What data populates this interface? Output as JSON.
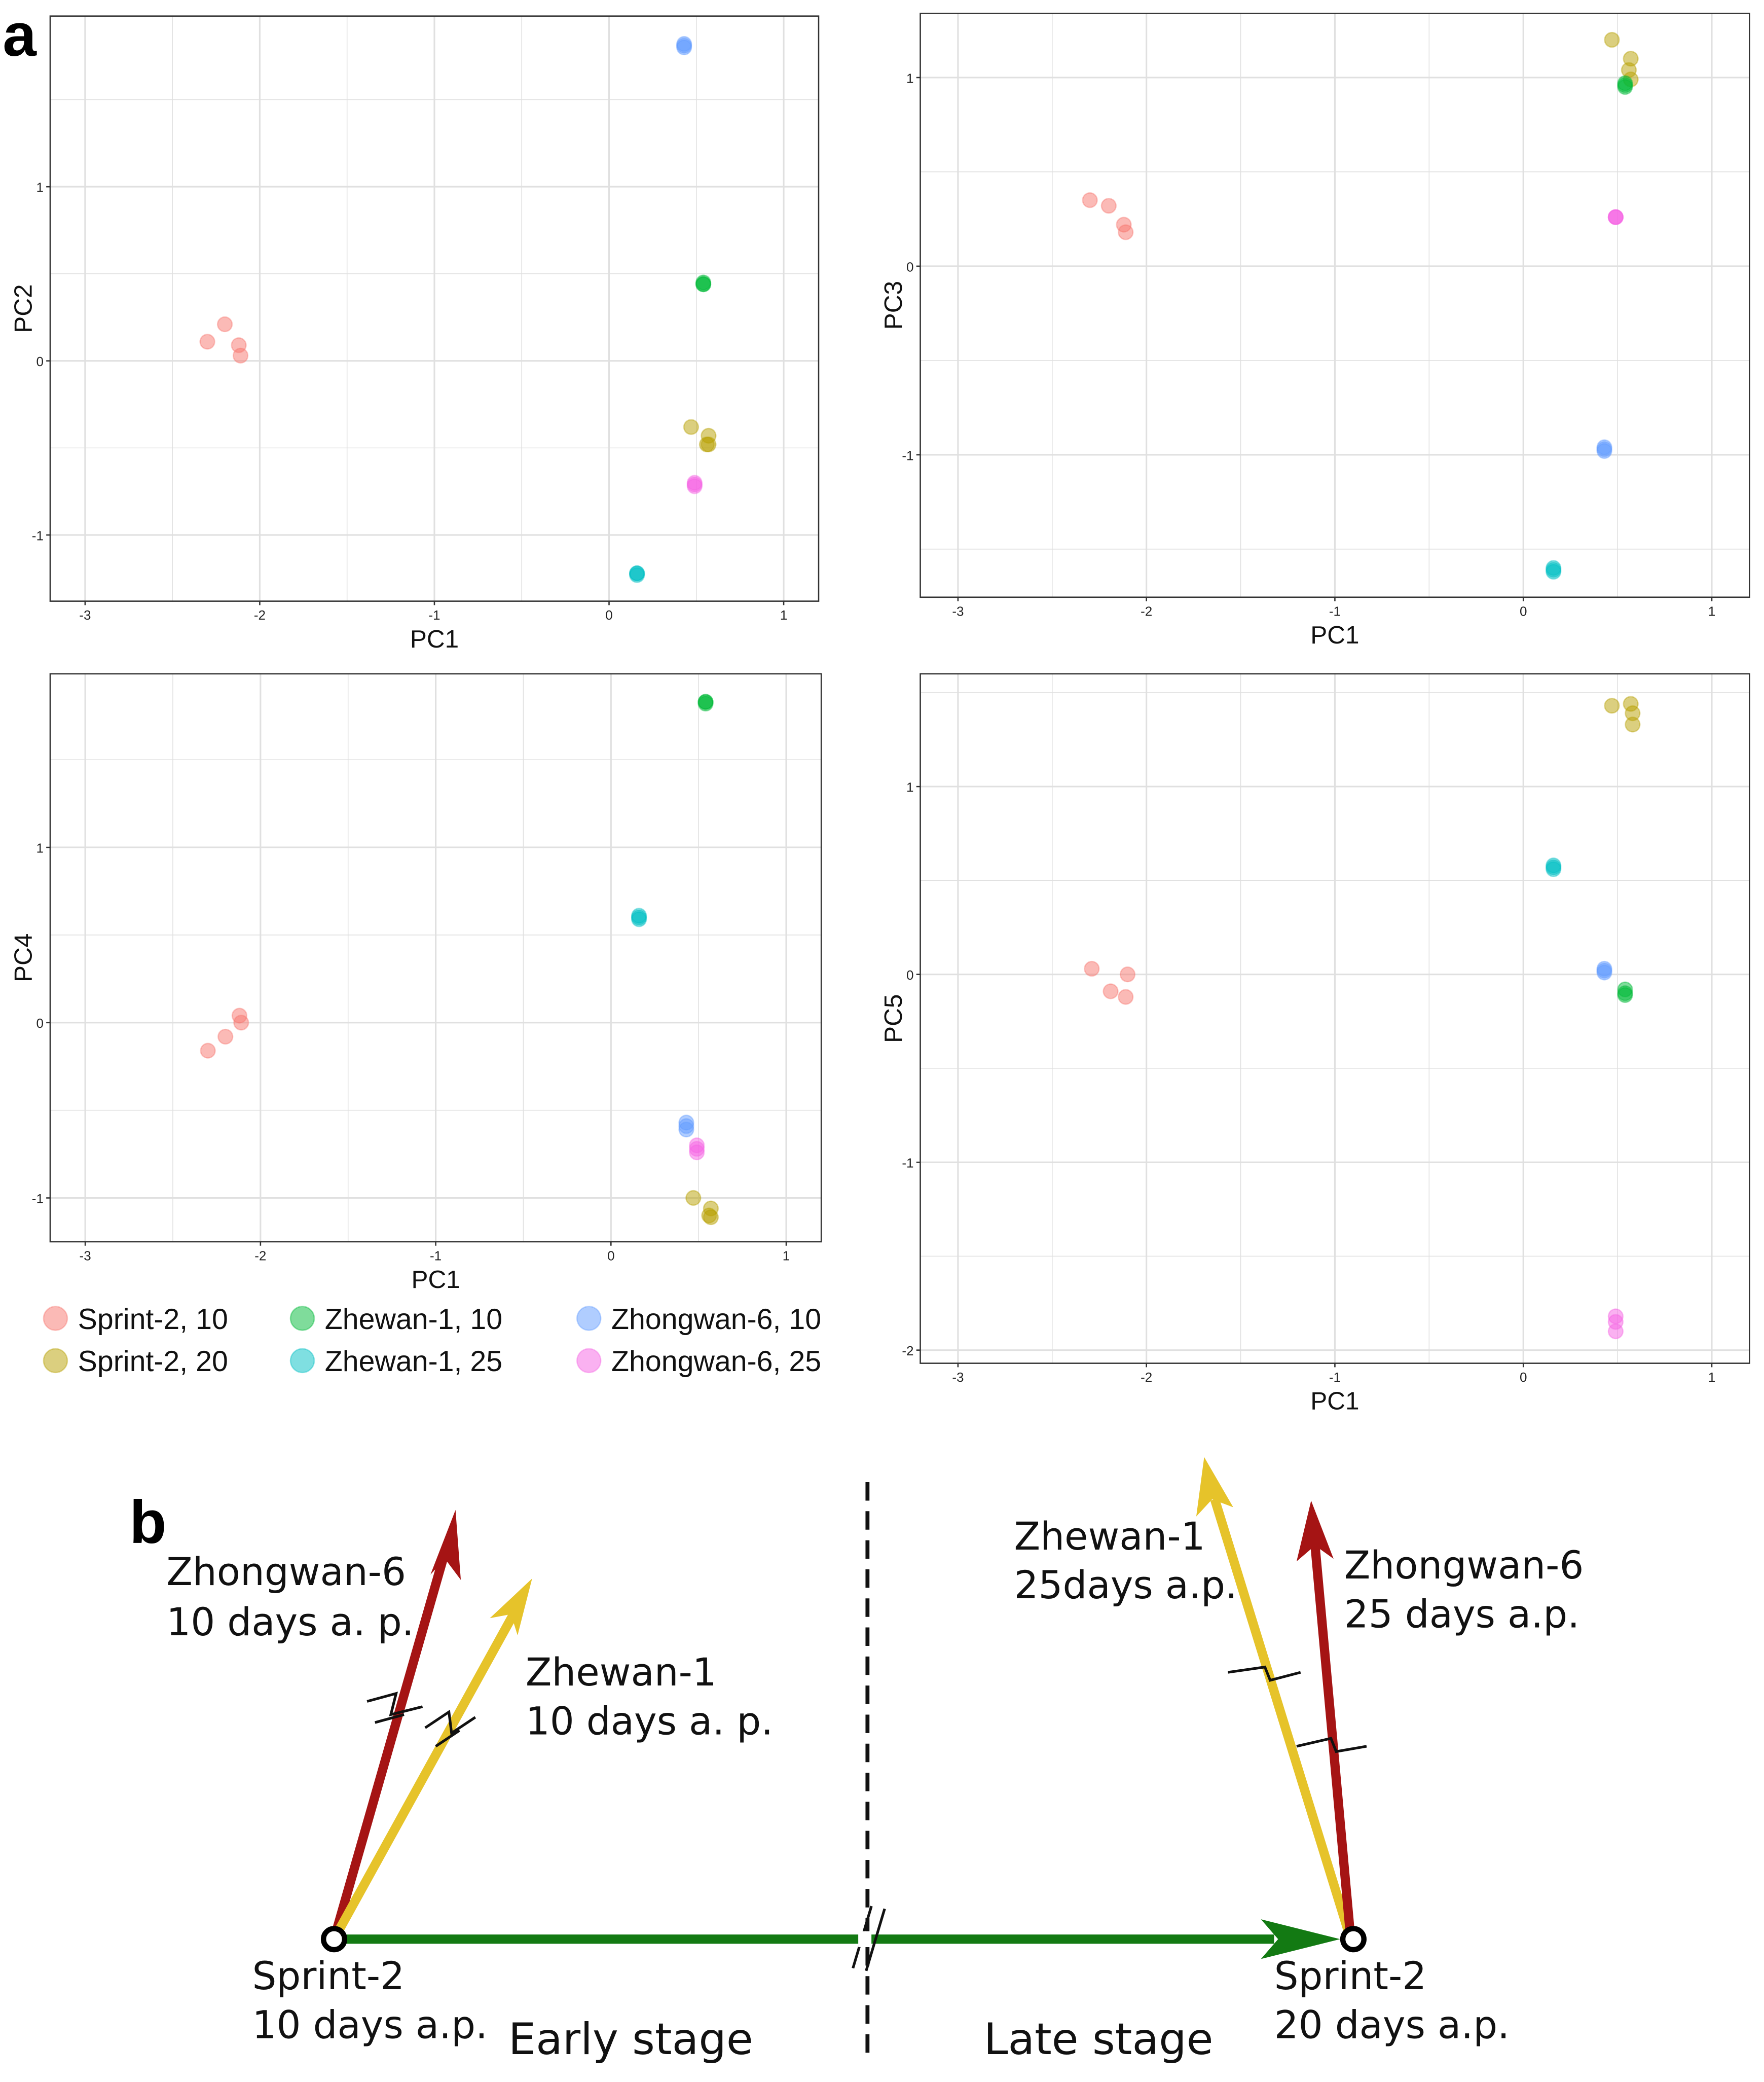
{
  "panel_labels": {
    "a": "a",
    "b": "b"
  },
  "colors": {
    "Sprint-2, 10": "#F8766D",
    "Sprint-2, 20": "#B79F00",
    "Zhewan-1, 10": "#00BA38",
    "Zhewan-1, 25": "#00BFC4",
    "Zhongwan-6, 10": "#619CFF",
    "Zhongwan-6, 25": "#F564E3"
  },
  "legend": [
    "Sprint-2, 10",
    "Sprint-2, 20",
    "Zhewan-1, 10",
    "Zhewan-1, 25",
    "Zhongwan-6, 10",
    "Zhongwan-6, 25"
  ],
  "chart_data": [
    {
      "type": "scatter",
      "xlabel": "PC1",
      "ylabel": "PC2",
      "xlim": [
        -3.2,
        1.2
      ],
      "ylim": [
        -1.38,
        1.98
      ],
      "xticks": [
        "-3",
        "-2",
        "-1",
        "0",
        "1"
      ],
      "yticks": [
        "-1",
        "0",
        "1"
      ],
      "series": [
        {
          "name": "Sprint-2, 10",
          "x": [
            -2.3,
            -2.2,
            -2.12,
            -2.11
          ],
          "y": [
            0.11,
            0.21,
            0.09,
            0.03
          ]
        },
        {
          "name": "Sprint-2, 20",
          "x": [
            0.47,
            0.57,
            0.56,
            0.57
          ],
          "y": [
            -0.38,
            -0.43,
            -0.48,
            -0.48
          ]
        },
        {
          "name": "Zhewan-1, 10",
          "x": [
            0.54,
            0.54,
            0.54
          ],
          "y": [
            0.44,
            0.44,
            0.45
          ]
        },
        {
          "name": "Zhewan-1, 25",
          "x": [
            0.16,
            0.16,
            0.16
          ],
          "y": [
            -1.22,
            -1.23,
            -1.22
          ]
        },
        {
          "name": "Zhongwan-6, 10",
          "x": [
            0.43,
            0.43,
            0.43
          ],
          "y": [
            1.81,
            1.8,
            1.82
          ]
        },
        {
          "name": "Zhongwan-6, 25",
          "x": [
            0.49,
            0.49,
            0.49
          ],
          "y": [
            -0.71,
            -0.72,
            -0.7
          ]
        }
      ]
    },
    {
      "type": "scatter",
      "xlabel": "PC1",
      "ylabel": "PC3",
      "xlim": [
        -3.2,
        1.2
      ],
      "ylim": [
        -1.755,
        1.34
      ],
      "xticks": [
        "-3",
        "-2",
        "-1",
        "0",
        "1"
      ],
      "yticks": [
        "-1",
        "0",
        "1"
      ],
      "series": [
        {
          "name": "Sprint-2, 10",
          "x": [
            -2.3,
            -2.2,
            -2.12,
            -2.11
          ],
          "y": [
            0.35,
            0.32,
            0.22,
            0.18
          ]
        },
        {
          "name": "Sprint-2, 20",
          "x": [
            0.47,
            0.57,
            0.56,
            0.57
          ],
          "y": [
            1.2,
            1.1,
            1.04,
            0.99
          ]
        },
        {
          "name": "Zhewan-1, 10",
          "x": [
            0.54,
            0.54,
            0.54
          ],
          "y": [
            0.96,
            0.95,
            0.97
          ]
        },
        {
          "name": "Zhewan-1, 25",
          "x": [
            0.16,
            0.16,
            0.16
          ],
          "y": [
            -1.6,
            -1.62,
            -1.61
          ]
        },
        {
          "name": "Zhongwan-6, 10",
          "x": [
            0.43,
            0.43,
            0.43
          ],
          "y": [
            -0.96,
            -0.98,
            -0.97
          ]
        },
        {
          "name": "Zhongwan-6, 25",
          "x": [
            0.49,
            0.49,
            0.49
          ],
          "y": [
            0.26,
            0.26,
            0.26
          ]
        }
      ]
    },
    {
      "type": "scatter",
      "xlabel": "PC1",
      "ylabel": "PC4",
      "xlim": [
        -3.2,
        1.2
      ],
      "ylim": [
        -1.25,
        1.99
      ],
      "xticks": [
        "-3",
        "-2",
        "-1",
        "0",
        "1"
      ],
      "yticks": [
        "-1",
        "0",
        "1"
      ],
      "series": [
        {
          "name": "Sprint-2, 10",
          "x": [
            -2.3,
            -2.2,
            -2.12,
            -2.11
          ],
          "y": [
            -0.16,
            -0.08,
            0.04,
            0.0
          ]
        },
        {
          "name": "Sprint-2, 20",
          "x": [
            0.47,
            0.57,
            0.56,
            0.57
          ],
          "y": [
            -1.0,
            -1.06,
            -1.1,
            -1.11
          ]
        },
        {
          "name": "Zhewan-1, 10",
          "x": [
            0.54,
            0.54,
            0.54
          ],
          "y": [
            1.83,
            1.82,
            1.83
          ]
        },
        {
          "name": "Zhewan-1, 25",
          "x": [
            0.16,
            0.16,
            0.16
          ],
          "y": [
            0.6,
            0.59,
            0.61
          ]
        },
        {
          "name": "Zhongwan-6, 10",
          "x": [
            0.43,
            0.43,
            0.43
          ],
          "y": [
            -0.57,
            -0.59,
            -0.61
          ]
        },
        {
          "name": "Zhongwan-6, 25",
          "x": [
            0.49,
            0.49,
            0.49
          ],
          "y": [
            -0.7,
            -0.72,
            -0.74
          ]
        }
      ]
    },
    {
      "type": "scatter",
      "xlabel": "PC1",
      "ylabel": "PC5",
      "xlim": [
        -3.2,
        1.2
      ],
      "ylim": [
        -2.07,
        1.6
      ],
      "xticks": [
        "-3",
        "-2",
        "-1",
        "0",
        "1"
      ],
      "yticks": [
        "-2",
        "-1",
        "0",
        "1"
      ],
      "series": [
        {
          "name": "Sprint-2, 10",
          "x": [
            -2.29,
            -2.19,
            -2.1,
            -2.11
          ],
          "y": [
            0.03,
            -0.09,
            0.0,
            -0.12
          ]
        },
        {
          "name": "Sprint-2, 20",
          "x": [
            0.47,
            0.57,
            0.58,
            0.58
          ],
          "y": [
            1.43,
            1.44,
            1.39,
            1.33
          ]
        },
        {
          "name": "Zhewan-1, 10",
          "x": [
            0.54,
            0.54,
            0.54
          ],
          "y": [
            -0.08,
            -0.1,
            -0.11
          ]
        },
        {
          "name": "Zhewan-1, 25",
          "x": [
            0.16,
            0.16,
            0.16
          ],
          "y": [
            0.58,
            0.56,
            0.57
          ]
        },
        {
          "name": "Zhongwan-6, 10",
          "x": [
            0.43,
            0.43,
            0.43
          ],
          "y": [
            0.03,
            0.01,
            0.02
          ]
        },
        {
          "name": "Zhongwan-6, 25",
          "x": [
            0.49,
            0.49,
            0.49
          ],
          "y": [
            -1.82,
            -1.85,
            -1.9
          ]
        }
      ]
    }
  ],
  "diagram": {
    "zhongwan10": [
      "Zhongwan-6",
      "10 days a. p."
    ],
    "zhewan10": [
      "Zhewan-1",
      "10 days a. p."
    ],
    "zhewan25": [
      "Zhewan-1",
      "25days a.p."
    ],
    "zhongwan25": [
      "Zhongwan-6",
      "25 days a.p."
    ],
    "sprint10": [
      "Sprint-2",
      "10 days a.p."
    ],
    "sprint20": [
      "Sprint-2",
      "20 days a.p."
    ],
    "early": "Early stage",
    "late": "Late stage",
    "arrow_colors": {
      "red": "#A51414",
      "yellow": "#E6C32A",
      "green": "#137A13"
    }
  }
}
